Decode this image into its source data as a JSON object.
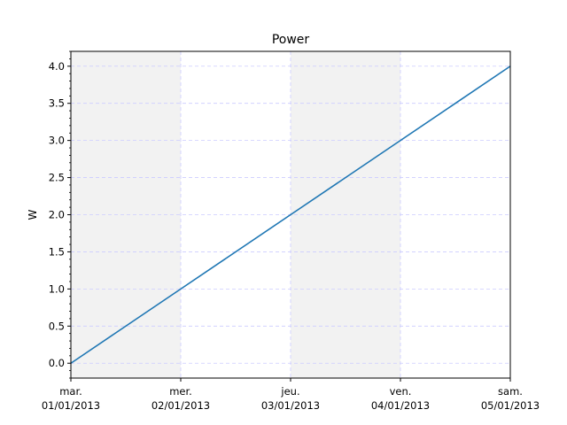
{
  "chart_data": {
    "type": "line",
    "title": "Power",
    "xlabel": "",
    "ylabel": "W",
    "x": [
      "2013-01-01",
      "2013-01-02",
      "2013-01-03",
      "2013-01-04",
      "2013-01-05"
    ],
    "x_tick_labels": [
      {
        "day": "mar.",
        "date": "01/01/2013"
      },
      {
        "day": "mer.",
        "date": "02/01/2013"
      },
      {
        "day": "jeu.",
        "date": "03/01/2013"
      },
      {
        "day": "ven.",
        "date": "04/01/2013"
      },
      {
        "day": "sam.",
        "date": "05/01/2013"
      }
    ],
    "series": [
      {
        "values": [
          0,
          1,
          2,
          3,
          4
        ],
        "color": "#1f77b4"
      }
    ],
    "y_ticks": [
      "0.0",
      "0.5",
      "1.0",
      "1.5",
      "2.0",
      "2.5",
      "3.0",
      "3.5",
      "4.0"
    ],
    "ylim": [
      -0.2,
      4.2
    ],
    "grid": true,
    "grid_color": "#ccccff",
    "shaded_days": [
      "2013-01-01",
      "2013-01-03"
    ],
    "shade_color": "#f2f2f2"
  }
}
